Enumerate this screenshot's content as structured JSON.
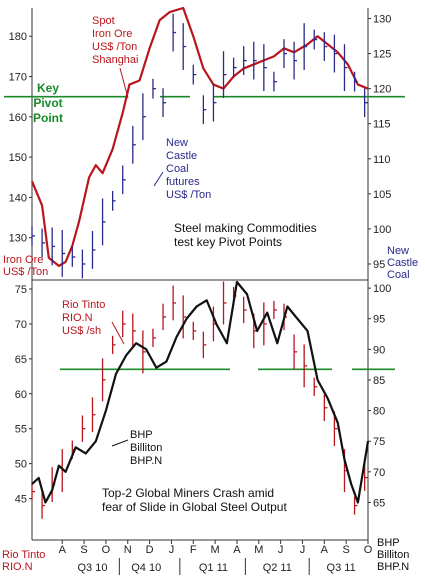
{
  "chart_data": [
    {
      "type": "line",
      "panel": "top",
      "left_axis_ticks": [
        "180",
        "170",
        "160",
        "150",
        "140",
        "130"
      ],
      "right_axis_ticks": [
        "130",
        "125",
        "120",
        "115",
        "110",
        "105",
        "100",
        "95"
      ],
      "ylim_left": [
        120,
        187
      ],
      "ylim_right": [
        93,
        131.5
      ],
      "left_axis_label": [
        "Iron Ore",
        "US$ /Ton"
      ],
      "right_axis_label": [
        "New",
        "Castle",
        "Coal"
      ],
      "pivot_label": [
        "Key",
        "Pivot",
        "Point"
      ],
      "pivot_level_left": 165,
      "series": [
        {
          "name": "Spot Iron Ore US$ /Ton Shanghai",
          "label_lines": [
            "Spot",
            "Iron Ore",
            "US$ /Ton",
            "Shanghai"
          ],
          "color": "#b8161c",
          "axis": "left",
          "x": [
            0,
            3,
            5,
            8,
            10,
            12,
            14,
            17,
            19,
            21,
            24,
            27,
            29,
            32,
            35,
            38,
            41,
            45,
            48,
            51,
            54,
            57,
            60,
            63,
            66,
            69,
            72,
            75,
            78,
            82,
            85,
            88,
            91,
            94,
            97,
            100
          ],
          "values": [
            144,
            138,
            125,
            123,
            124,
            128,
            134,
            145,
            148,
            146,
            152,
            161,
            168,
            169,
            177,
            184,
            186,
            187,
            180,
            172,
            168,
            167,
            170,
            172,
            173,
            174,
            175,
            177,
            176,
            178,
            180,
            178,
            176,
            173,
            168,
            167
          ]
        },
        {
          "name": "New Castle Coal futures US$ /Ton",
          "label_lines": [
            "New",
            "Castle",
            "Coal",
            "futures",
            "US$ /Ton"
          ],
          "color": "#2a2a8c",
          "axis": "right",
          "style": "price-bars",
          "x": [
            0,
            3,
            6,
            9,
            12,
            15,
            18,
            21,
            24,
            27,
            30,
            33,
            36,
            39,
            42,
            45,
            48,
            51,
            54,
            57,
            60,
            63,
            66,
            69,
            72,
            75,
            78,
            81,
            84,
            87,
            90,
            93,
            96,
            99
          ],
          "values": [
            99,
            98,
            97.5,
            96.5,
            96,
            95,
            97,
            101,
            104,
            107,
            112,
            116,
            120,
            118,
            128,
            126,
            122,
            117,
            118,
            122,
            123,
            124,
            124,
            123,
            121,
            125,
            124,
            126,
            127,
            126,
            125,
            123,
            121,
            118
          ]
        }
      ],
      "annotation": [
        "Steel making Commodities",
        "test key Pivot Points"
      ]
    },
    {
      "type": "line",
      "panel": "bottom",
      "left_axis_ticks": [
        "75",
        "70",
        "65",
        "60",
        "55",
        "50",
        "45"
      ],
      "right_axis_ticks": [
        "100",
        "95",
        "90",
        "85",
        "80",
        "75",
        "70",
        "65"
      ],
      "ylim_left": [
        40.5,
        76
      ],
      "ylim_right": [
        60.5,
        101
      ],
      "pivot_level_left": 63.5,
      "series": [
        {
          "name": "Rio Tinto RIO.N US$ /sh",
          "label_lines": [
            "Rio Tinto",
            "RIO.N",
            "US$ /sh"
          ],
          "color": "#b8161c",
          "axis": "left",
          "style": "price-bars",
          "x": [
            0,
            3,
            6,
            9,
            12,
            15,
            18,
            21,
            24,
            27,
            30,
            33,
            36,
            39,
            42,
            45,
            48,
            51,
            54,
            57,
            60,
            63,
            66,
            69,
            72,
            75,
            78,
            81,
            84,
            87,
            90,
            93,
            96,
            99
          ],
          "values": [
            46,
            44,
            47,
            49,
            52,
            55,
            57,
            62,
            67,
            70,
            69,
            66,
            68,
            71,
            73,
            71,
            69,
            67,
            70,
            73,
            74,
            72,
            69,
            70,
            72,
            71,
            66,
            64,
            61,
            58,
            55,
            49,
            44,
            48
          ]
        },
        {
          "name": "BHP Billiton BHP.N",
          "label_lines": [
            "BHP",
            "Billiton",
            "BHP.N"
          ],
          "color": "#111111",
          "axis": "right",
          "x": [
            0,
            2,
            4,
            6,
            8,
            10,
            13,
            16,
            19,
            22,
            25,
            28,
            31,
            34,
            37,
            40,
            43,
            46,
            49,
            52,
            55,
            58,
            61,
            64,
            67,
            70,
            73,
            76,
            79,
            82,
            85,
            88,
            91,
            93,
            95,
            97,
            100
          ],
          "values": [
            68,
            69,
            65,
            67,
            71,
            70,
            74,
            73,
            75,
            80,
            86,
            89,
            91,
            90,
            87,
            88,
            92,
            95,
            97,
            98,
            94,
            91,
            101,
            99,
            93,
            96,
            91,
            97,
            95,
            93,
            85,
            82,
            78,
            72,
            68,
            65,
            75
          ]
        }
      ],
      "annotation": [
        "Top-2 Global Miners Crash amid",
        "fear of Slide in Global Steel Output"
      ],
      "bottom_left_label": [
        "Rio Tinto",
        "RIO.N"
      ],
      "bottom_right_label": [
        "BHP",
        "Billiton",
        "BHP.N"
      ]
    }
  ],
  "x_axis": {
    "months": [
      "A",
      "S",
      "O",
      "N",
      "D",
      "J",
      "F",
      "M",
      "A",
      "M",
      "J",
      "J",
      "A",
      "S",
      "O"
    ],
    "quarters": [
      "Q3 10",
      "Q4 10",
      "Q1 11",
      "Q2 11",
      "Q3 11"
    ]
  },
  "colors": {
    "red_series": "#b8161c",
    "blue_series": "#2a2a8c",
    "black_series": "#111111",
    "pivot_line": "#1a8a2a",
    "axis": "#333333"
  }
}
